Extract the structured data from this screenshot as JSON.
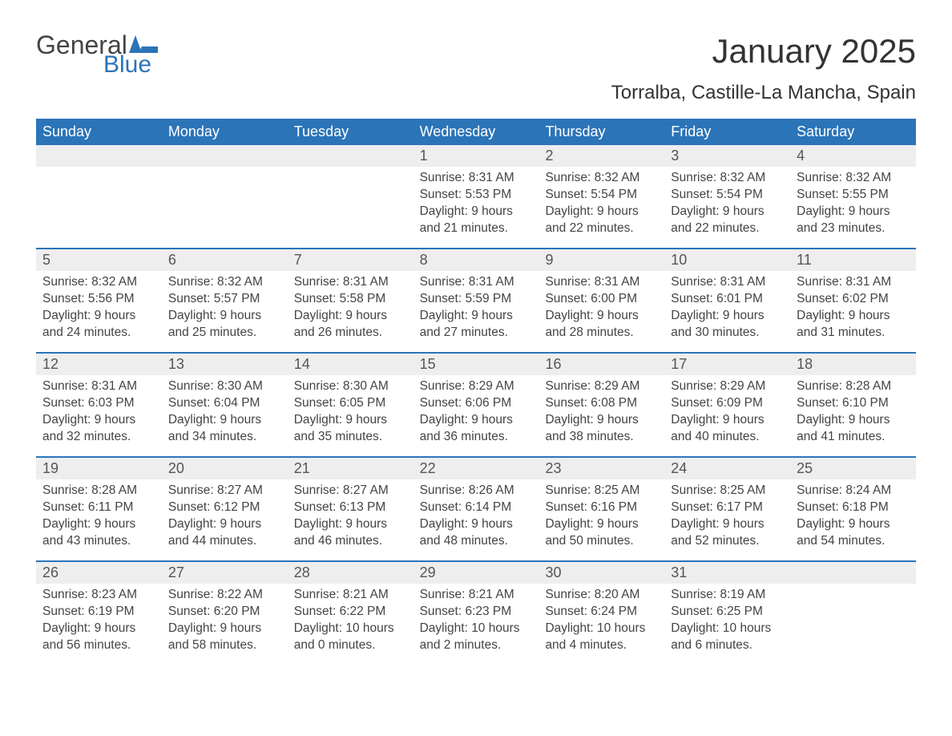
{
  "logo": {
    "word1": "General",
    "word2": "Blue",
    "flag_color": "#2b74b8",
    "word1_color": "#444444"
  },
  "title": "January 2025",
  "subtitle": "Torralba, Castille-La Mancha, Spain",
  "colors": {
    "header_bg": "#2b74b8",
    "header_text": "#ffffff",
    "daynum_bg": "#eeeeee",
    "daynum_text": "#555555",
    "body_text": "#444444",
    "week_border": "#2b74b8",
    "page_bg": "#ffffff"
  },
  "day_headers": [
    "Sunday",
    "Monday",
    "Tuesday",
    "Wednesday",
    "Thursday",
    "Friday",
    "Saturday"
  ],
  "weeks": [
    [
      {
        "day": "",
        "sunrise": "",
        "sunset": "",
        "daylight1": "",
        "daylight2": ""
      },
      {
        "day": "",
        "sunrise": "",
        "sunset": "",
        "daylight1": "",
        "daylight2": ""
      },
      {
        "day": "",
        "sunrise": "",
        "sunset": "",
        "daylight1": "",
        "daylight2": ""
      },
      {
        "day": "1",
        "sunrise": "Sunrise: 8:31 AM",
        "sunset": "Sunset: 5:53 PM",
        "daylight1": "Daylight: 9 hours",
        "daylight2": "and 21 minutes."
      },
      {
        "day": "2",
        "sunrise": "Sunrise: 8:32 AM",
        "sunset": "Sunset: 5:54 PM",
        "daylight1": "Daylight: 9 hours",
        "daylight2": "and 22 minutes."
      },
      {
        "day": "3",
        "sunrise": "Sunrise: 8:32 AM",
        "sunset": "Sunset: 5:54 PM",
        "daylight1": "Daylight: 9 hours",
        "daylight2": "and 22 minutes."
      },
      {
        "day": "4",
        "sunrise": "Sunrise: 8:32 AM",
        "sunset": "Sunset: 5:55 PM",
        "daylight1": "Daylight: 9 hours",
        "daylight2": "and 23 minutes."
      }
    ],
    [
      {
        "day": "5",
        "sunrise": "Sunrise: 8:32 AM",
        "sunset": "Sunset: 5:56 PM",
        "daylight1": "Daylight: 9 hours",
        "daylight2": "and 24 minutes."
      },
      {
        "day": "6",
        "sunrise": "Sunrise: 8:32 AM",
        "sunset": "Sunset: 5:57 PM",
        "daylight1": "Daylight: 9 hours",
        "daylight2": "and 25 minutes."
      },
      {
        "day": "7",
        "sunrise": "Sunrise: 8:31 AM",
        "sunset": "Sunset: 5:58 PM",
        "daylight1": "Daylight: 9 hours",
        "daylight2": "and 26 minutes."
      },
      {
        "day": "8",
        "sunrise": "Sunrise: 8:31 AM",
        "sunset": "Sunset: 5:59 PM",
        "daylight1": "Daylight: 9 hours",
        "daylight2": "and 27 minutes."
      },
      {
        "day": "9",
        "sunrise": "Sunrise: 8:31 AM",
        "sunset": "Sunset: 6:00 PM",
        "daylight1": "Daylight: 9 hours",
        "daylight2": "and 28 minutes."
      },
      {
        "day": "10",
        "sunrise": "Sunrise: 8:31 AM",
        "sunset": "Sunset: 6:01 PM",
        "daylight1": "Daylight: 9 hours",
        "daylight2": "and 30 minutes."
      },
      {
        "day": "11",
        "sunrise": "Sunrise: 8:31 AM",
        "sunset": "Sunset: 6:02 PM",
        "daylight1": "Daylight: 9 hours",
        "daylight2": "and 31 minutes."
      }
    ],
    [
      {
        "day": "12",
        "sunrise": "Sunrise: 8:31 AM",
        "sunset": "Sunset: 6:03 PM",
        "daylight1": "Daylight: 9 hours",
        "daylight2": "and 32 minutes."
      },
      {
        "day": "13",
        "sunrise": "Sunrise: 8:30 AM",
        "sunset": "Sunset: 6:04 PM",
        "daylight1": "Daylight: 9 hours",
        "daylight2": "and 34 minutes."
      },
      {
        "day": "14",
        "sunrise": "Sunrise: 8:30 AM",
        "sunset": "Sunset: 6:05 PM",
        "daylight1": "Daylight: 9 hours",
        "daylight2": "and 35 minutes."
      },
      {
        "day": "15",
        "sunrise": "Sunrise: 8:29 AM",
        "sunset": "Sunset: 6:06 PM",
        "daylight1": "Daylight: 9 hours",
        "daylight2": "and 36 minutes."
      },
      {
        "day": "16",
        "sunrise": "Sunrise: 8:29 AM",
        "sunset": "Sunset: 6:08 PM",
        "daylight1": "Daylight: 9 hours",
        "daylight2": "and 38 minutes."
      },
      {
        "day": "17",
        "sunrise": "Sunrise: 8:29 AM",
        "sunset": "Sunset: 6:09 PM",
        "daylight1": "Daylight: 9 hours",
        "daylight2": "and 40 minutes."
      },
      {
        "day": "18",
        "sunrise": "Sunrise: 8:28 AM",
        "sunset": "Sunset: 6:10 PM",
        "daylight1": "Daylight: 9 hours",
        "daylight2": "and 41 minutes."
      }
    ],
    [
      {
        "day": "19",
        "sunrise": "Sunrise: 8:28 AM",
        "sunset": "Sunset: 6:11 PM",
        "daylight1": "Daylight: 9 hours",
        "daylight2": "and 43 minutes."
      },
      {
        "day": "20",
        "sunrise": "Sunrise: 8:27 AM",
        "sunset": "Sunset: 6:12 PM",
        "daylight1": "Daylight: 9 hours",
        "daylight2": "and 44 minutes."
      },
      {
        "day": "21",
        "sunrise": "Sunrise: 8:27 AM",
        "sunset": "Sunset: 6:13 PM",
        "daylight1": "Daylight: 9 hours",
        "daylight2": "and 46 minutes."
      },
      {
        "day": "22",
        "sunrise": "Sunrise: 8:26 AM",
        "sunset": "Sunset: 6:14 PM",
        "daylight1": "Daylight: 9 hours",
        "daylight2": "and 48 minutes."
      },
      {
        "day": "23",
        "sunrise": "Sunrise: 8:25 AM",
        "sunset": "Sunset: 6:16 PM",
        "daylight1": "Daylight: 9 hours",
        "daylight2": "and 50 minutes."
      },
      {
        "day": "24",
        "sunrise": "Sunrise: 8:25 AM",
        "sunset": "Sunset: 6:17 PM",
        "daylight1": "Daylight: 9 hours",
        "daylight2": "and 52 minutes."
      },
      {
        "day": "25",
        "sunrise": "Sunrise: 8:24 AM",
        "sunset": "Sunset: 6:18 PM",
        "daylight1": "Daylight: 9 hours",
        "daylight2": "and 54 minutes."
      }
    ],
    [
      {
        "day": "26",
        "sunrise": "Sunrise: 8:23 AM",
        "sunset": "Sunset: 6:19 PM",
        "daylight1": "Daylight: 9 hours",
        "daylight2": "and 56 minutes."
      },
      {
        "day": "27",
        "sunrise": "Sunrise: 8:22 AM",
        "sunset": "Sunset: 6:20 PM",
        "daylight1": "Daylight: 9 hours",
        "daylight2": "and 58 minutes."
      },
      {
        "day": "28",
        "sunrise": "Sunrise: 8:21 AM",
        "sunset": "Sunset: 6:22 PM",
        "daylight1": "Daylight: 10 hours",
        "daylight2": "and 0 minutes."
      },
      {
        "day": "29",
        "sunrise": "Sunrise: 8:21 AM",
        "sunset": "Sunset: 6:23 PM",
        "daylight1": "Daylight: 10 hours",
        "daylight2": "and 2 minutes."
      },
      {
        "day": "30",
        "sunrise": "Sunrise: 8:20 AM",
        "sunset": "Sunset: 6:24 PM",
        "daylight1": "Daylight: 10 hours",
        "daylight2": "and 4 minutes."
      },
      {
        "day": "31",
        "sunrise": "Sunrise: 8:19 AM",
        "sunset": "Sunset: 6:25 PM",
        "daylight1": "Daylight: 10 hours",
        "daylight2": "and 6 minutes."
      },
      {
        "day": "",
        "sunrise": "",
        "sunset": "",
        "daylight1": "",
        "daylight2": ""
      }
    ]
  ]
}
